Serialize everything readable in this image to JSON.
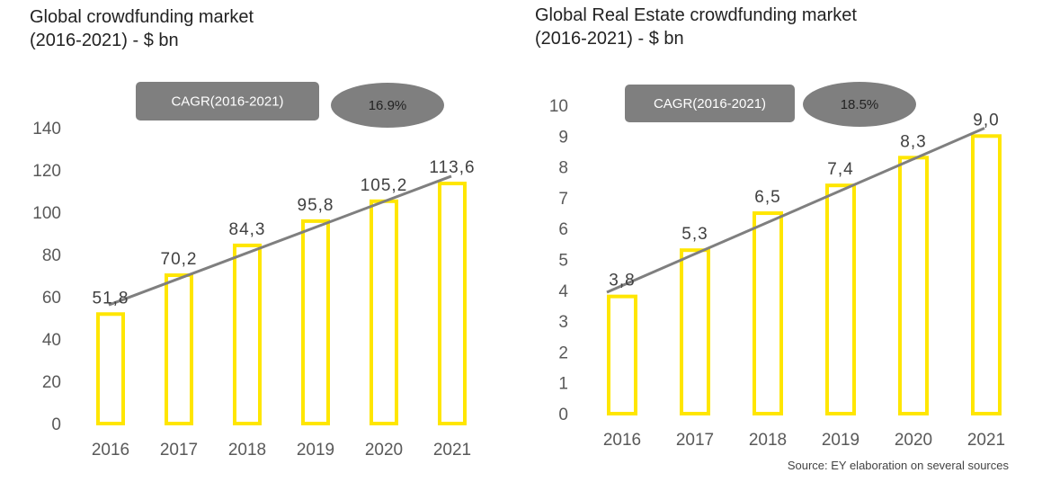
{
  "colors": {
    "bar": "#FFE600",
    "trend": "#7F7F7F",
    "cagr_box": "#7F7F7F",
    "cagr_ellipse": "#7F7F7F"
  },
  "chart_data": [
    {
      "type": "bar",
      "title_line1": "Global crowdfunding market",
      "title_line2": "(2016-2021) - $ bn",
      "categories": [
        "2016",
        "2017",
        "2018",
        "2019",
        "2020",
        "2021"
      ],
      "values": [
        51.8,
        70.2,
        84.3,
        95.8,
        105.2,
        113.6
      ],
      "data_labels": [
        "51,8",
        "70,2",
        "84,3",
        "95,8",
        "105,2",
        "113,6"
      ],
      "ylim": [
        0,
        140
      ],
      "yticks": [
        "0",
        "20",
        "40",
        "60",
        "80",
        "100",
        "120",
        "140"
      ],
      "trendline": true,
      "cagr_label": "CAGR(2016-2021)",
      "cagr_value": "16.9%"
    },
    {
      "type": "bar",
      "title_line1": "Global Real Estate crowdfunding market",
      "title_line2": "(2016-2021) - $ bn",
      "categories": [
        "2016",
        "2017",
        "2018",
        "2019",
        "2020",
        "2021"
      ],
      "values": [
        3.8,
        5.3,
        6.5,
        7.4,
        8.3,
        9.0
      ],
      "data_labels": [
        "3,8",
        "5,3",
        "6,5",
        "7,4",
        "8,3",
        "9,0"
      ],
      "ylim": [
        0,
        10
      ],
      "yticks": [
        "0",
        "1",
        "2",
        "3",
        "4",
        "5",
        "6",
        "7",
        "8",
        "9",
        "10"
      ],
      "trendline": true,
      "cagr_label": "CAGR(2016-2021)",
      "cagr_value": "18.5%"
    }
  ],
  "source": "Source: EY elaboration on several sources"
}
